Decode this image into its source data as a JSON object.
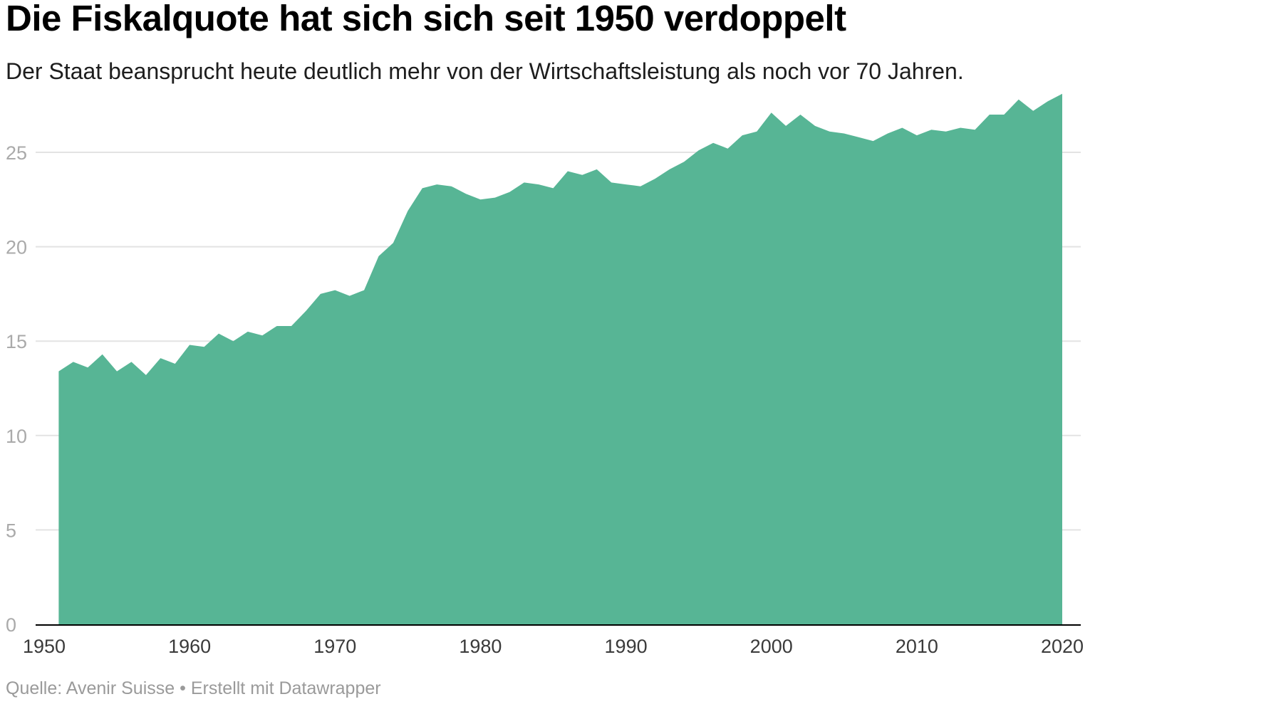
{
  "title": "Die Fiskalquote hat sich sich seit 1950 verdoppelt",
  "subtitle": "Der Staat beansprucht heute deutlich mehr von der Wirtschaftsleistung als noch vor 70 Jahren.",
  "footer": {
    "source": "Quelle: Avenir Suisse",
    "separator": "•",
    "credit": "Erstellt mit Datawrapper"
  },
  "colors": {
    "area": "#57b595",
    "grid": "#e3e3e3",
    "axis": "#000000"
  },
  "chart_data": {
    "type": "area",
    "title": "Die Fiskalquote hat sich sich seit 1950 verdoppelt",
    "xlabel": "",
    "ylabel": "",
    "xlim": [
      1950,
      2020
    ],
    "ylim": [
      0,
      28
    ],
    "grid": true,
    "legend": "none",
    "x_ticks": [
      1950,
      1960,
      1970,
      1980,
      1990,
      2000,
      2010,
      2020
    ],
    "y_ticks": [
      0,
      5,
      10,
      15,
      20,
      25
    ],
    "series": [
      {
        "x": [
          1951,
          1952,
          1953,
          1954,
          1955,
          1956,
          1957,
          1958,
          1959,
          1960,
          1961,
          1962,
          1963,
          1964,
          1965,
          1966,
          1967,
          1968,
          1969,
          1970,
          1971,
          1972,
          1973,
          1974,
          1975,
          1976,
          1977,
          1978,
          1979,
          1980,
          1981,
          1982,
          1983,
          1984,
          1985,
          1986,
          1987,
          1988,
          1989,
          1990,
          1991,
          1992,
          1993,
          1994,
          1995,
          1996,
          1997,
          1998,
          1999,
          2000,
          2001,
          2002,
          2003,
          2004,
          2005,
          2006,
          2007,
          2008,
          2009,
          2010,
          2011,
          2012,
          2013,
          2014,
          2015,
          2016,
          2017,
          2018,
          2019,
          2020
        ],
        "values": [
          13.4,
          13.9,
          13.6,
          14.3,
          13.4,
          13.9,
          13.2,
          14.1,
          13.8,
          14.8,
          14.7,
          15.4,
          15.0,
          15.5,
          15.3,
          15.8,
          15.8,
          16.6,
          17.5,
          17.7,
          17.4,
          17.7,
          19.5,
          20.2,
          21.9,
          23.1,
          23.3,
          23.2,
          22.8,
          22.5,
          22.6,
          22.9,
          23.4,
          23.3,
          23.1,
          24.0,
          23.8,
          24.1,
          23.4,
          23.3,
          23.2,
          23.6,
          24.1,
          24.5,
          25.1,
          25.5,
          25.2,
          25.9,
          26.1,
          27.1,
          26.4,
          27.0,
          26.4,
          26.1,
          26.0,
          25.8,
          25.6,
          26.0,
          26.3,
          25.9,
          26.2,
          26.1,
          26.3,
          26.2,
          27.0,
          27.0,
          27.8,
          27.2,
          27.7,
          28.1
        ]
      }
    ]
  }
}
